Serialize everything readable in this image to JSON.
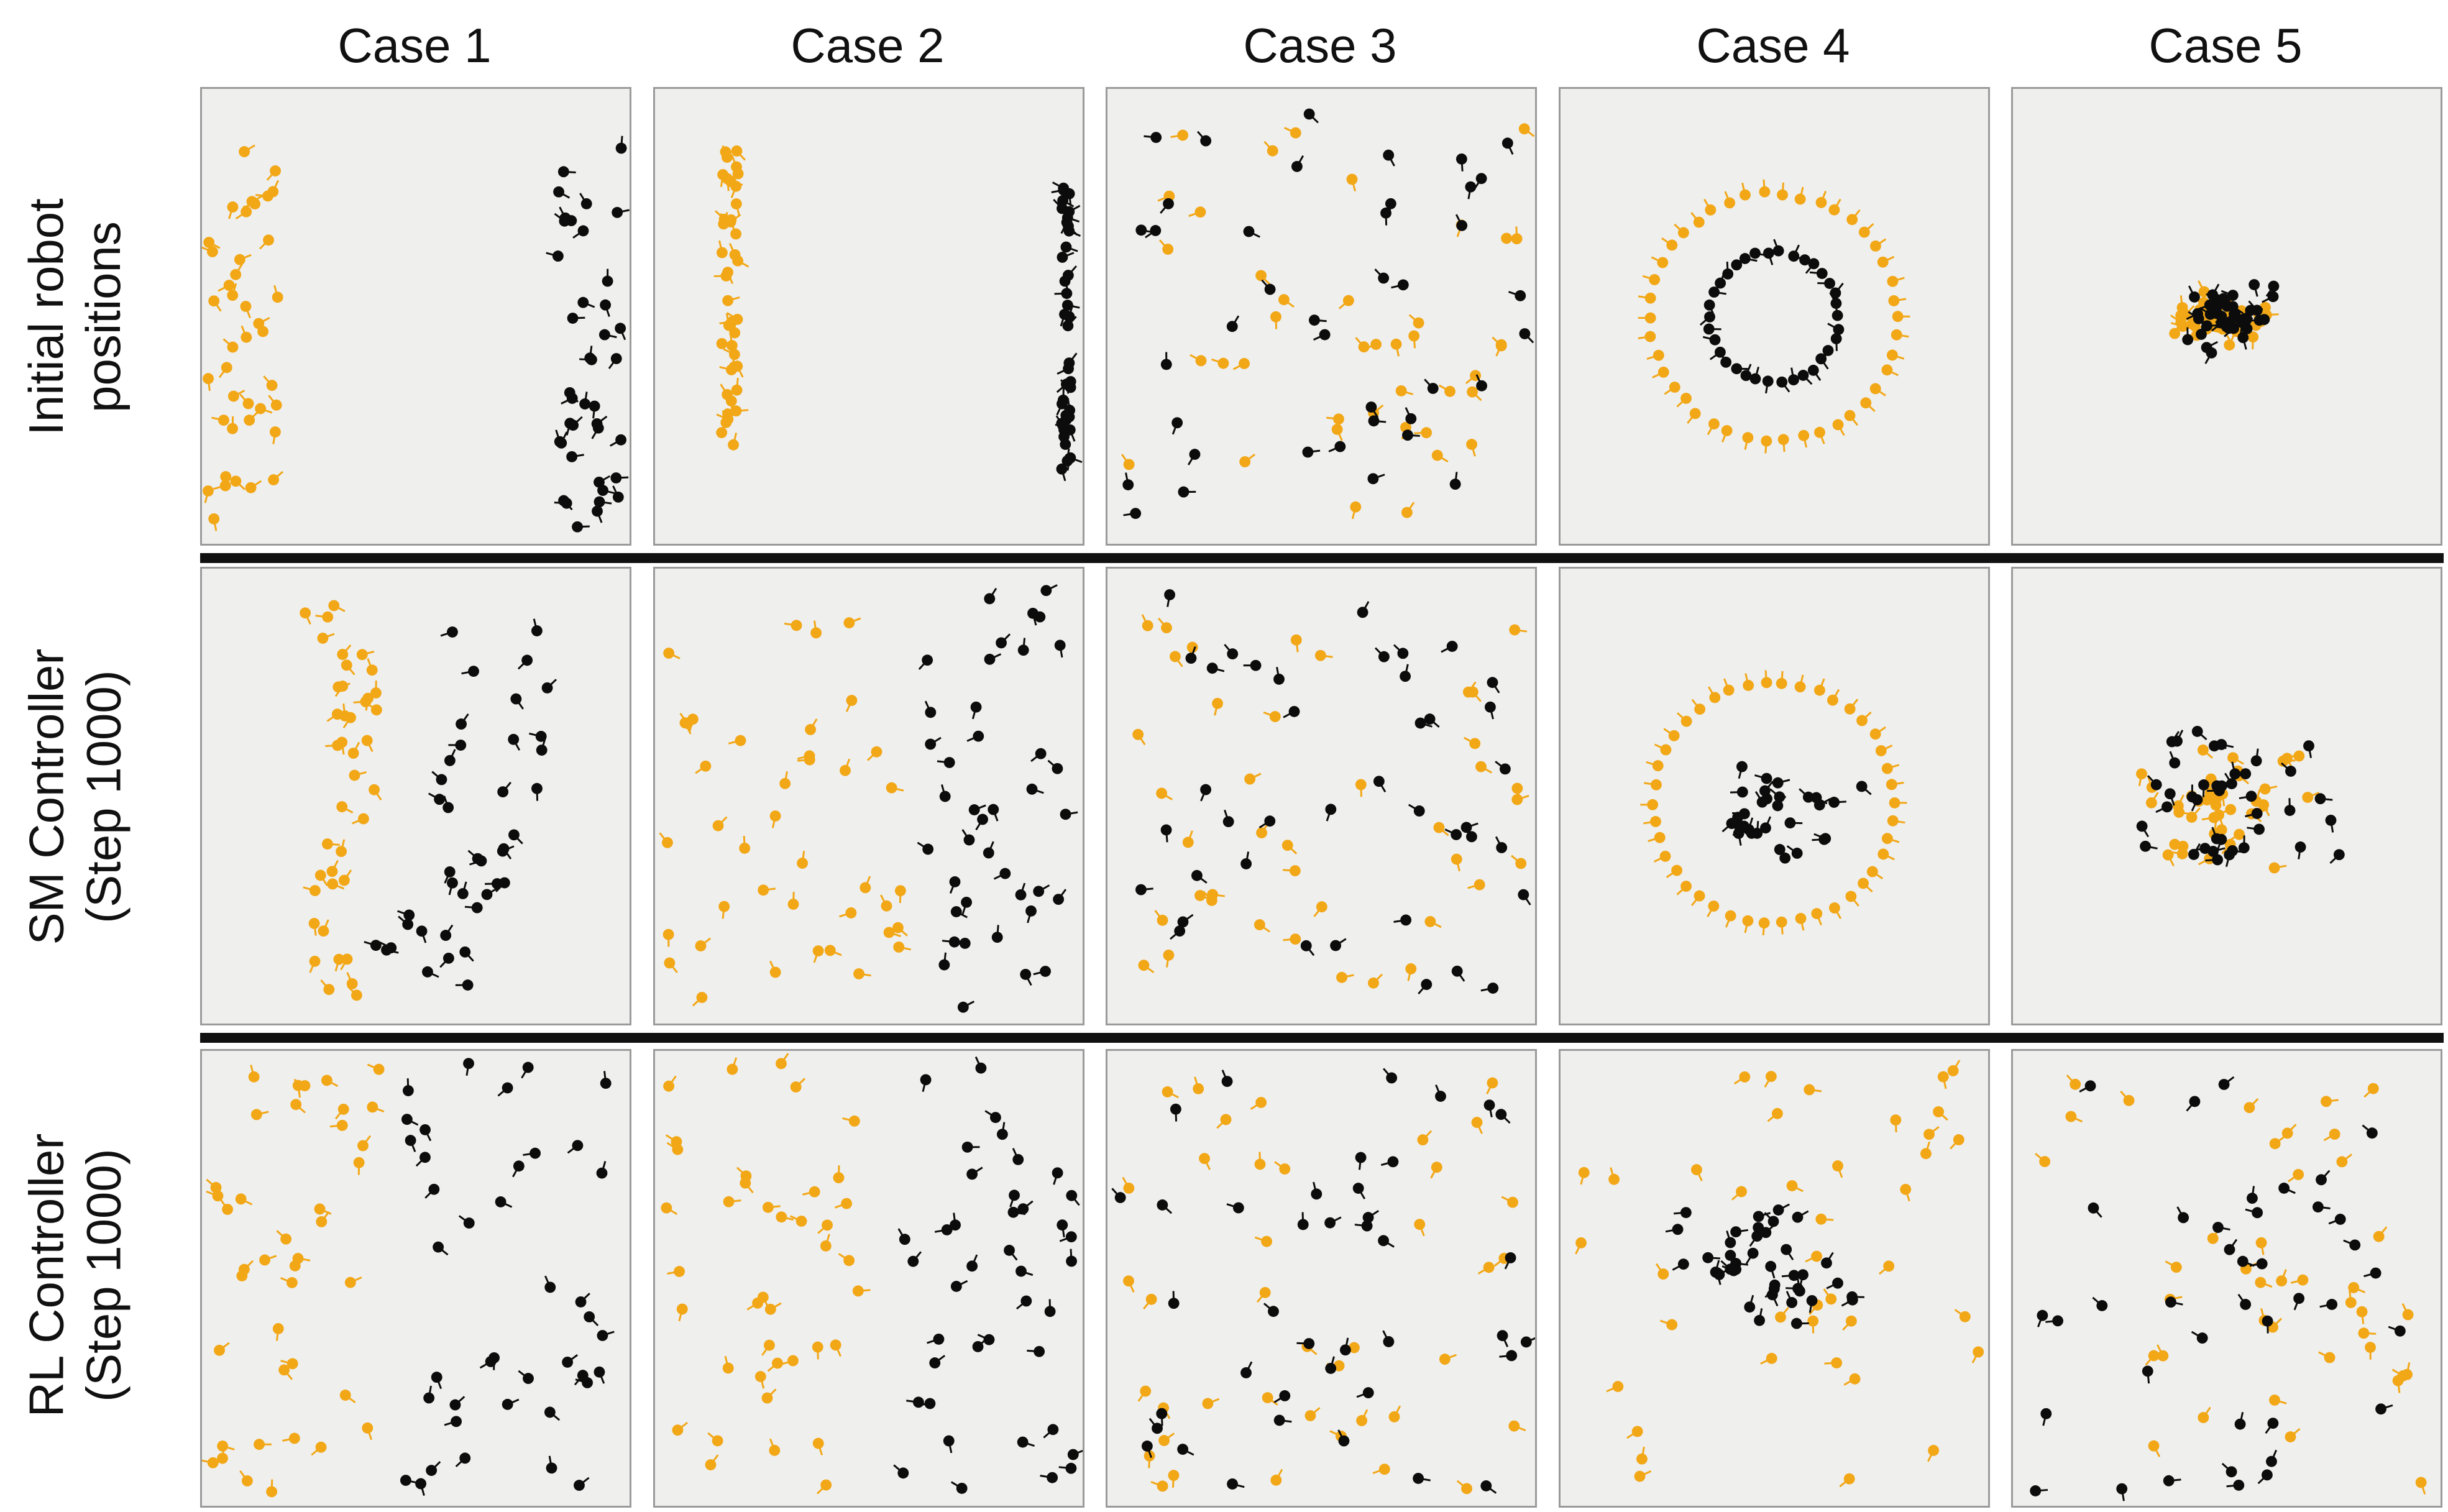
{
  "columns": [
    "Case 1",
    "Case 2",
    "Case 3",
    "Case 4",
    "Case 5"
  ],
  "rows": [
    {
      "line1": "Initial robot",
      "line2": "positions"
    },
    {
      "line1": "SM Controller",
      "line2": "(Step 1000)"
    },
    {
      "line1": "RL Controller",
      "line2": "(Step 1000)"
    }
  ],
  "colors": {
    "team_a": "#f2a716",
    "team_b": "#0c0c0c",
    "panel_background": "#efefed",
    "panel_border": "#9a9a9a",
    "separator": "#111111"
  },
  "robot_icon": "circle-with-heading-line"
}
